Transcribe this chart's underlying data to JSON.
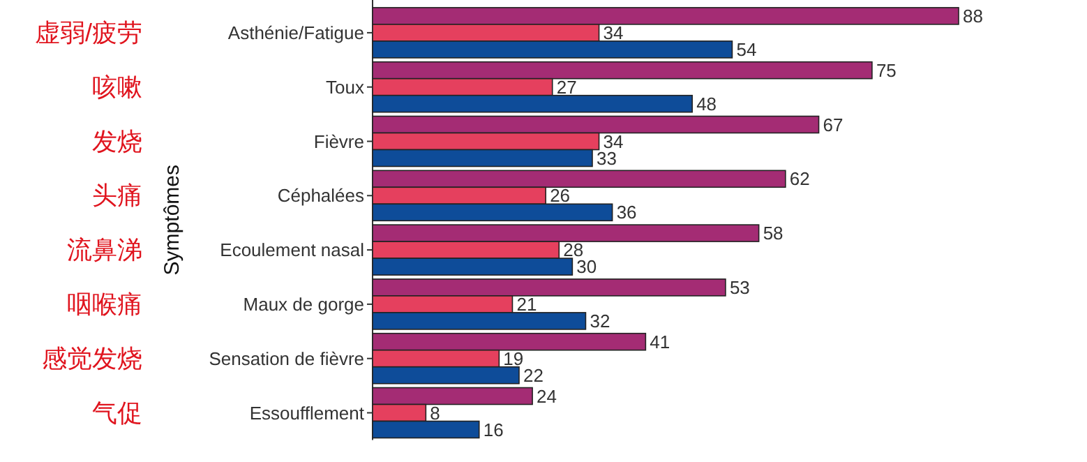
{
  "chart_data": {
    "type": "bar",
    "orientation": "horizontal",
    "data_labels": true,
    "ylabel": "Symptômes",
    "categories": [
      "Asthénie/Fatigue",
      "Toux",
      "Fièvre",
      "Céphalées",
      "Ecoulement nasal",
      "Maux de gorge",
      "Sensation de fièvre",
      "Essoufflement"
    ],
    "annotations": [
      "虚弱/疲劳",
      "咳嗽",
      "发烧",
      "头痛",
      "流鼻涕",
      "咽喉痛",
      "感觉发烧",
      "气促"
    ],
    "series": [
      {
        "color": "#a42c74",
        "values": [
          88,
          75,
          67,
          62,
          58,
          53,
          41,
          24
        ]
      },
      {
        "color": "#e5405e",
        "values": [
          34,
          27,
          34,
          26,
          28,
          21,
          19,
          8
        ]
      },
      {
        "color": "#0e4c99",
        "values": [
          54,
          48,
          33,
          36,
          30,
          32,
          22,
          16
        ]
      }
    ]
  }
}
